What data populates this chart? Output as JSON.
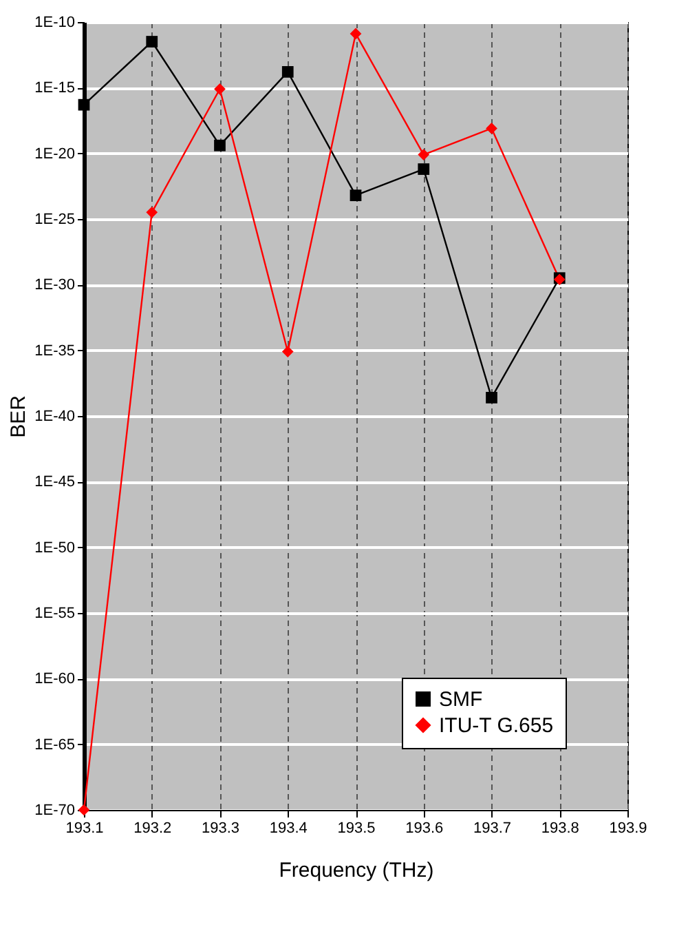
{
  "chart_data": {
    "type": "line",
    "xlabel": "Frequency (THz)",
    "ylabel": "BER",
    "log": "y",
    "grid": true,
    "legend": "bottom right",
    "x": [
      193.1,
      193.2,
      193.3,
      193.4,
      193.5,
      193.6,
      193.7,
      193.8
    ],
    "xlim": [
      193.1,
      193.9
    ],
    "xticks": [
      193.1,
      193.2,
      193.3,
      193.4,
      193.5,
      193.6,
      193.7,
      193.8,
      193.9
    ],
    "ylim": [
      1e-70,
      1e-10
    ],
    "yticks": [
      {
        "value": 1e-70,
        "label": "1E-70"
      },
      {
        "value": 1e-65,
        "label": "1E-65"
      },
      {
        "value": 1e-60,
        "label": "1E-60"
      },
      {
        "value": 1e-55,
        "label": "1E-55"
      },
      {
        "value": 1e-50,
        "label": "1E-50"
      },
      {
        "value": 1e-45,
        "label": "1E-45"
      },
      {
        "value": 1e-40,
        "label": "1E-40"
      },
      {
        "value": 1e-35,
        "label": "1E-35"
      },
      {
        "value": 1e-30,
        "label": "1E-30"
      },
      {
        "value": 1e-25,
        "label": "1E-25"
      },
      {
        "value": 1e-20,
        "label": "1E-20"
      },
      {
        "value": 1e-15,
        "label": "1E-15"
      },
      {
        "value": 1e-10,
        "label": "1E-10"
      }
    ],
    "series": [
      {
        "name": "SMF",
        "color": "#000000",
        "marker": "square",
        "values": [
          5e-17,
          3.2e-12,
          4e-20,
          1.6e-14,
          6.3e-24,
          6.3e-22,
          2.5e-39,
          3.2e-30
        ]
      },
      {
        "name": "ITU-T G.655",
        "color": "#ff0000",
        "marker": "diamond",
        "values": [
          1e-70,
          3.2e-25,
          7.9e-16,
          7.9e-36,
          1.3e-11,
          7.9e-21,
          7.9e-19,
          2.5e-30
        ]
      }
    ]
  }
}
